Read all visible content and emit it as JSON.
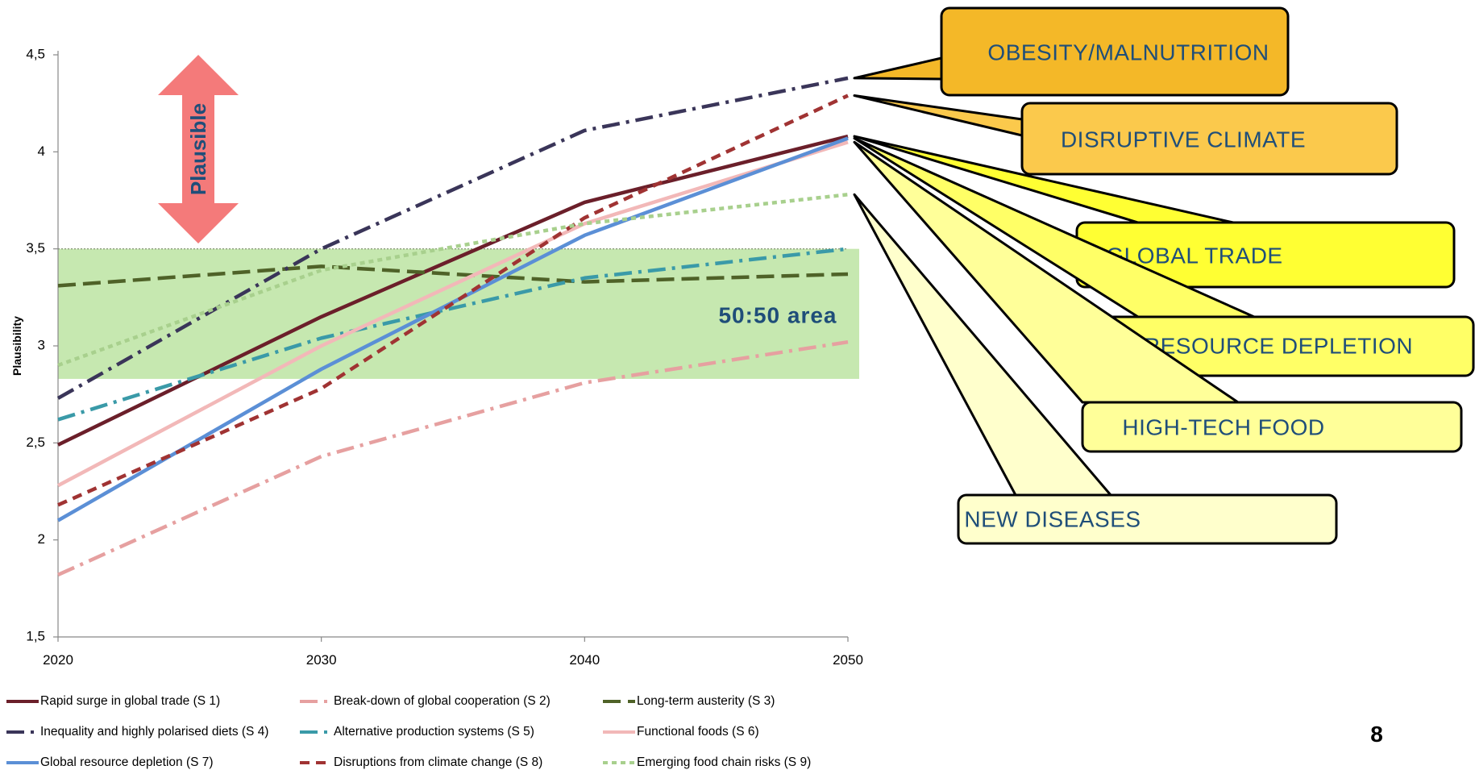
{
  "chart_data": {
    "type": "line",
    "x": [
      2020,
      2030,
      2040,
      2050
    ],
    "xtick_labels": [
      "2020",
      "2030",
      "2040",
      "2050"
    ],
    "ylabel": "Plausibility",
    "ylim": [
      1.5,
      4.5
    ],
    "ytick_values": [
      1.5,
      2,
      2.5,
      3,
      3.5,
      4,
      4.5
    ],
    "ytick_labels": [
      "1,5",
      "2",
      "2,5",
      "3",
      "3,5",
      "4",
      "4,5"
    ],
    "grid": false,
    "legend_position": "bottom",
    "series": [
      {
        "name": "Rapid surge in global trade (S 1)",
        "values": [
          2.49,
          3.15,
          3.74,
          4.08
        ],
        "color": "#6b1f2a",
        "dash": "solid"
      },
      {
        "name": "Break-down of global cooperation (S 2)",
        "values": [
          1.82,
          2.43,
          2.81,
          3.02
        ],
        "color": "#e6a0a0",
        "dash": "dashdot"
      },
      {
        "name": "Long-term austerity (S 3)",
        "values": [
          3.31,
          3.41,
          3.33,
          3.37
        ],
        "color": "#4f6228",
        "dash": "longdash"
      },
      {
        "name": "Inequality and highly polarised diets (S 4)",
        "values": [
          2.73,
          3.5,
          4.11,
          4.38
        ],
        "color": "#3a3559",
        "dash": "dashdot"
      },
      {
        "name": "Alternative production systems (S 5)",
        "values": [
          2.62,
          3.04,
          3.35,
          3.5
        ],
        "color": "#3a9aa8",
        "dash": "dashdot"
      },
      {
        "name": "Functional foods (S 6)",
        "values": [
          2.28,
          3.0,
          3.63,
          4.05
        ],
        "color": "#f2b8b8",
        "dash": "solid"
      },
      {
        "name": "Global resource depletion (S 7)",
        "values": [
          2.1,
          2.88,
          3.57,
          4.07
        ],
        "color": "#5b8fd6",
        "dash": "solid"
      },
      {
        "name": "Disruptions from climate change (S 8)",
        "values": [
          2.18,
          2.78,
          3.66,
          4.29
        ],
        "color": "#a03333",
        "dash": "dash"
      },
      {
        "name": "Emerging food chain risks (S 9)",
        "values": [
          2.9,
          3.39,
          3.63,
          3.78
        ],
        "color": "#a8d08d",
        "dash": "dot"
      }
    ],
    "band": {
      "label": "50:50 area",
      "y_range": [
        2.83,
        3.5
      ],
      "color": "#c6e8b0"
    },
    "annotations": [
      {
        "text": "Plausible",
        "type": "double-arrow",
        "color": "#f47a7a"
      }
    ]
  },
  "callouts": [
    {
      "text": "OBESITY/MALNUTRITION",
      "target_value": 4.38,
      "fill": "#f4b828"
    },
    {
      "text": "DISRUPTIVE CLIMATE",
      "target_value": 4.29,
      "fill": "#fbc94c"
    },
    {
      "text": "GLOBAL TRADE",
      "target_value": 4.08,
      "fill": "#ffff33"
    },
    {
      "text": "RESOURCE  DEPLETION",
      "target_value": 4.07,
      "fill": "#ffff66"
    },
    {
      "text": "HIGH-TECH  FOOD",
      "target_value": 4.05,
      "fill": "#ffff99"
    },
    {
      "text": "NEW DISEASES",
      "target_value": 3.78,
      "fill": "#ffffcc"
    }
  ],
  "page_number": "8"
}
